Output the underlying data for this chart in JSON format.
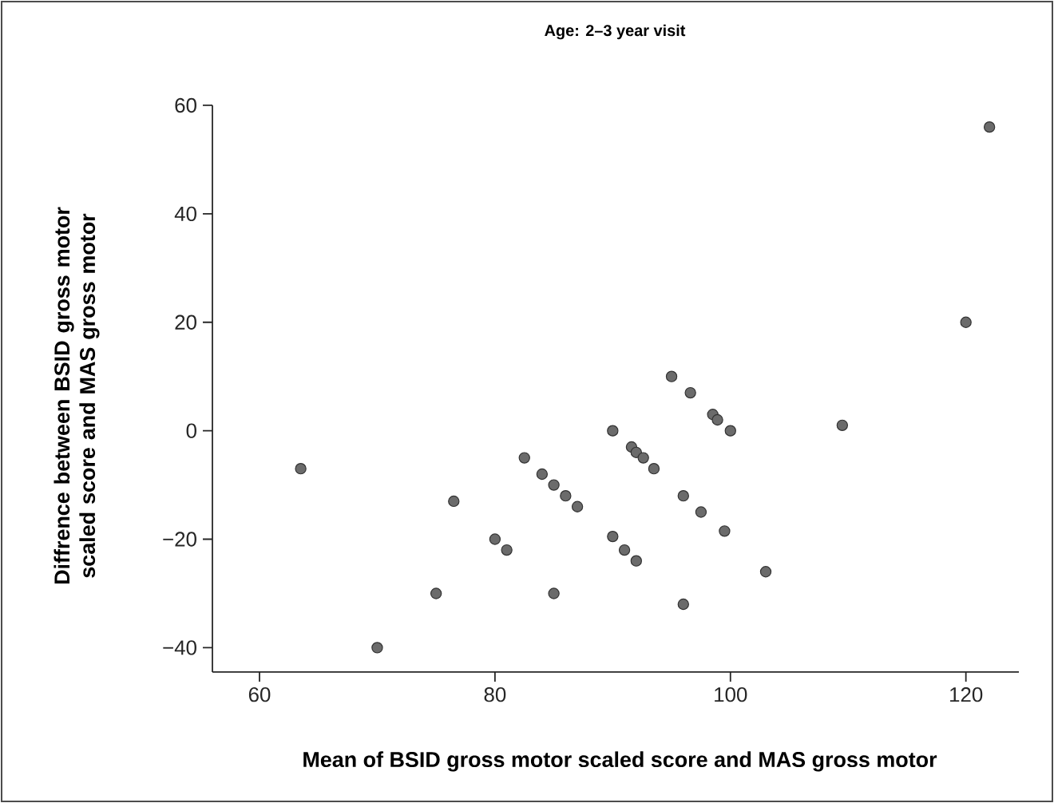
{
  "chart_data": {
    "type": "scatter",
    "title": "Age: 2–3 year visit",
    "xlabel": "Mean of BSID gross motor scaled score and MAS gross motor",
    "ylabel": "Diffrence between BSID gross motor scaled score and MAS gross motor",
    "x": [
      63.5,
      70,
      75,
      76.5,
      80,
      81,
      82.5,
      84,
      85,
      86,
      87,
      85,
      90,
      90,
      91,
      92,
      91.6,
      92,
      92.6,
      93.5,
      95,
      96,
      96,
      96.6,
      97.5,
      98.5,
      98.9,
      99.5,
      100,
      103,
      109.5,
      120,
      122
    ],
    "series": [
      {
        "color": "#6b6b6b",
        "values": [
          -7,
          -40,
          -30,
          -13,
          -20,
          -22,
          -5,
          -8,
          -10,
          -12,
          -14,
          -30,
          0,
          -19.5,
          -22,
          -24,
          -3,
          -4,
          -5,
          -7,
          10,
          -12,
          -32,
          7,
          -15,
          3,
          2,
          -18.5,
          0,
          -26,
          1,
          20,
          56
        ]
      }
    ],
    "xlim": [
      56,
      124.5
    ],
    "ylim": [
      -44.5,
      60
    ],
    "xticks": [
      60,
      80,
      100,
      120
    ],
    "yticks": [
      {
        "value": -40,
        "label": "−40"
      },
      {
        "value": -20,
        "label": "−20"
      },
      0,
      20,
      40,
      60
    ],
    "marker": "circle"
  }
}
